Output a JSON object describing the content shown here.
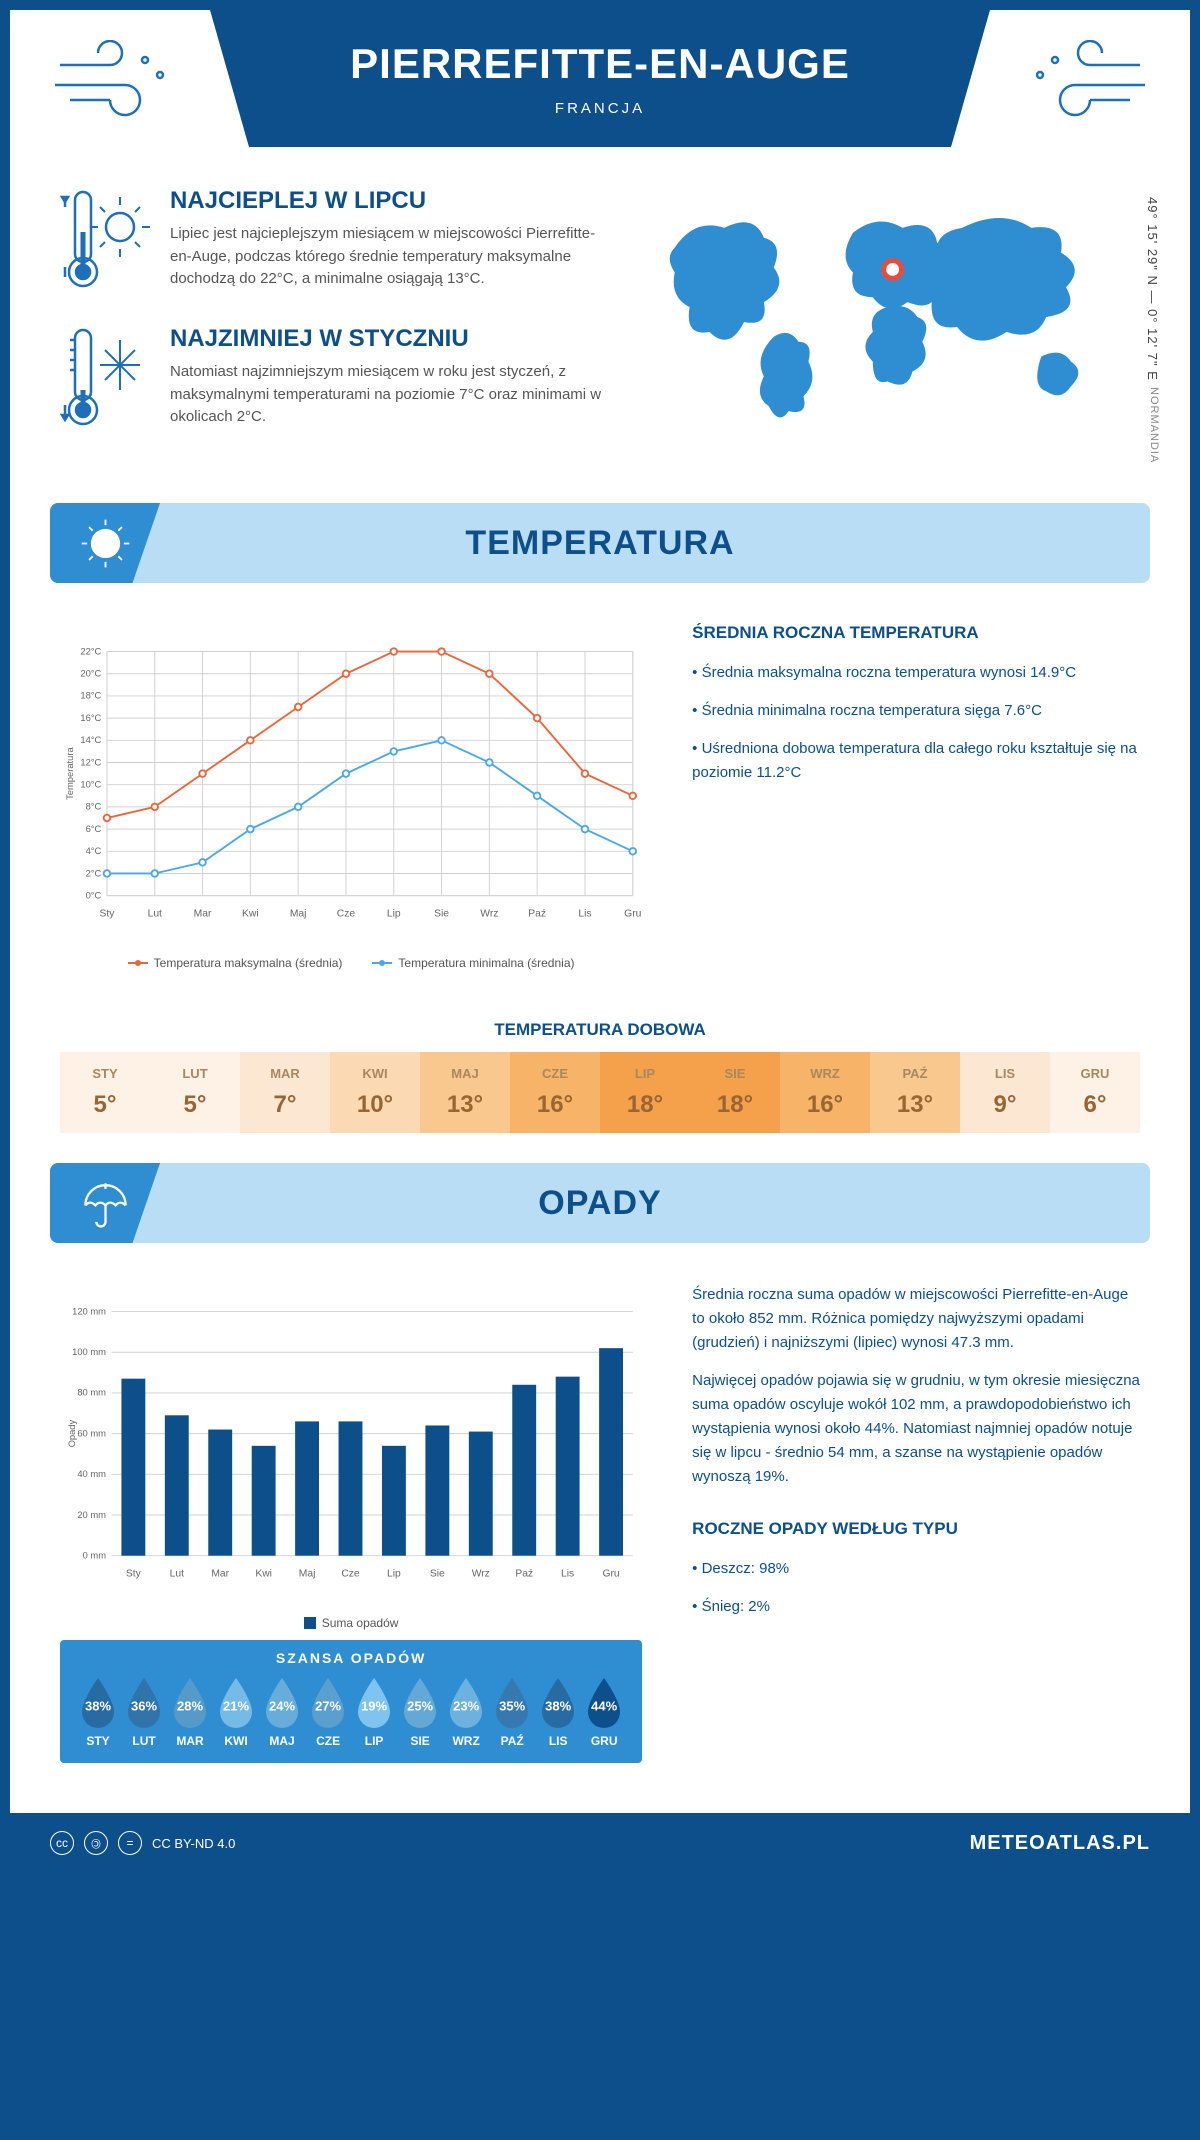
{
  "header": {
    "title": "PIERREFITTE-EN-AUGE",
    "country": "FRANCJA"
  },
  "coords": "49° 15' 29\" N — 0° 12' 7\" E",
  "region": "NORMANDIA",
  "facts": {
    "hot": {
      "title": "NAJCIEPLEJ W LIPCU",
      "text": "Lipiec jest najcieplejszym miesiącem w miejscowości Pierrefitte-en-Auge, podczas którego średnie temperatury maksymalne dochodzą do 22°C, a minimalne osiągają 13°C."
    },
    "cold": {
      "title": "NAJZIMNIEJ W STYCZNIU",
      "text": "Natomiast najzimniejszym miesiącem w roku jest styczeń, z maksymalnymi temperaturami na poziomie 7°C oraz minimami w okolicach 2°C."
    }
  },
  "temp_section": {
    "title": "TEMPERATURA"
  },
  "temp_chart": {
    "months": [
      "Sty",
      "Lut",
      "Mar",
      "Kwi",
      "Maj",
      "Cze",
      "Lip",
      "Sie",
      "Wrz",
      "Paź",
      "Lis",
      "Gru"
    ],
    "max": [
      7,
      8,
      11,
      14,
      17,
      20,
      22,
      22,
      20,
      16,
      11,
      9
    ],
    "min": [
      2,
      2,
      3,
      6,
      8,
      11,
      13,
      14,
      12,
      9,
      6,
      4
    ],
    "ylim": [
      0,
      22
    ],
    "ystep": 2,
    "color_max": "#e8663c",
    "color_min": "#4aa8e8",
    "grid_color": "#d0d0d0",
    "ylabel": "Temperatura",
    "legend_max": "Temperatura maksymalna (średnia)",
    "legend_min": "Temperatura minimalna (średnia)"
  },
  "temp_side": {
    "title": "ŚREDNIA ROCZNA TEMPERATURA",
    "items": [
      "Średnia maksymalna roczna temperatura wynosi 14.9°C",
      "Średnia minimalna roczna temperatura sięga 7.6°C",
      "Uśredniona dobowa temperatura dla całego roku kształtuje się na poziomie 11.2°C"
    ]
  },
  "daily": {
    "title": "TEMPERATURA DOBOWA",
    "months": [
      "STY",
      "LUT",
      "MAR",
      "KWI",
      "MAJ",
      "CZE",
      "LIP",
      "SIE",
      "WRZ",
      "PAŹ",
      "LIS",
      "GRU"
    ],
    "values": [
      "5°",
      "5°",
      "7°",
      "10°",
      "13°",
      "16°",
      "18°",
      "18°",
      "16°",
      "13°",
      "9°",
      "6°"
    ],
    "colors": [
      "#fdf2e5",
      "#fdf2e5",
      "#fce8d2",
      "#fbd9b3",
      "#f9c88f",
      "#f7b367",
      "#f5a04a",
      "#f5a04a",
      "#f7b367",
      "#f9c88f",
      "#fce8d2",
      "#fdf2e5"
    ]
  },
  "rain_section": {
    "title": "OPADY"
  },
  "rain_chart": {
    "months": [
      "Sty",
      "Lut",
      "Mar",
      "Kwi",
      "Maj",
      "Cze",
      "Lip",
      "Sie",
      "Wrz",
      "Paź",
      "Lis",
      "Gru"
    ],
    "values": [
      87,
      69,
      62,
      54,
      66,
      66,
      54,
      64,
      61,
      84,
      88,
      102
    ],
    "ylim": [
      0,
      120
    ],
    "ystep": 20,
    "bar_color": "#0d4f8b",
    "grid_color": "#d0d0d0",
    "ylabel": "Opady",
    "legend": "Suma opadów"
  },
  "rain_side": {
    "p1": "Średnia roczna suma opadów w miejscowości Pierrefitte-en-Auge to około 852 mm. Różnica pomiędzy najwyższymi opadami (grudzień) i najniższymi (lipiec) wynosi 47.3 mm.",
    "p2": "Najwięcej opadów pojawia się w grudniu, w tym okresie miesięczna suma opadów oscyluje wokół 102 mm, a prawdopodobieństwo ich wystąpienia wynosi około 44%. Natomiast najmniej opadów notuje się w lipcu - średnio 54 mm, a szanse na wystąpienie opadów wynoszą 19%.",
    "type_title": "ROCZNE OPADY WEDŁUG TYPU",
    "type_items": [
      "Deszcz: 98%",
      "Śnieg: 2%"
    ]
  },
  "chance": {
    "title": "SZANSA OPADÓW",
    "months": [
      "STY",
      "LUT",
      "MAR",
      "KWI",
      "MAJ",
      "CZE",
      "LIP",
      "SIE",
      "WRZ",
      "PAŹ",
      "LIS",
      "GRU"
    ],
    "values": [
      38,
      36,
      28,
      21,
      24,
      27,
      19,
      25,
      23,
      35,
      38,
      44
    ],
    "color_low": "#7fc4ee",
    "color_high": "#0d4f8b"
  },
  "footer": {
    "license": "CC BY-ND 4.0",
    "site": "METEOATLAS.PL"
  }
}
